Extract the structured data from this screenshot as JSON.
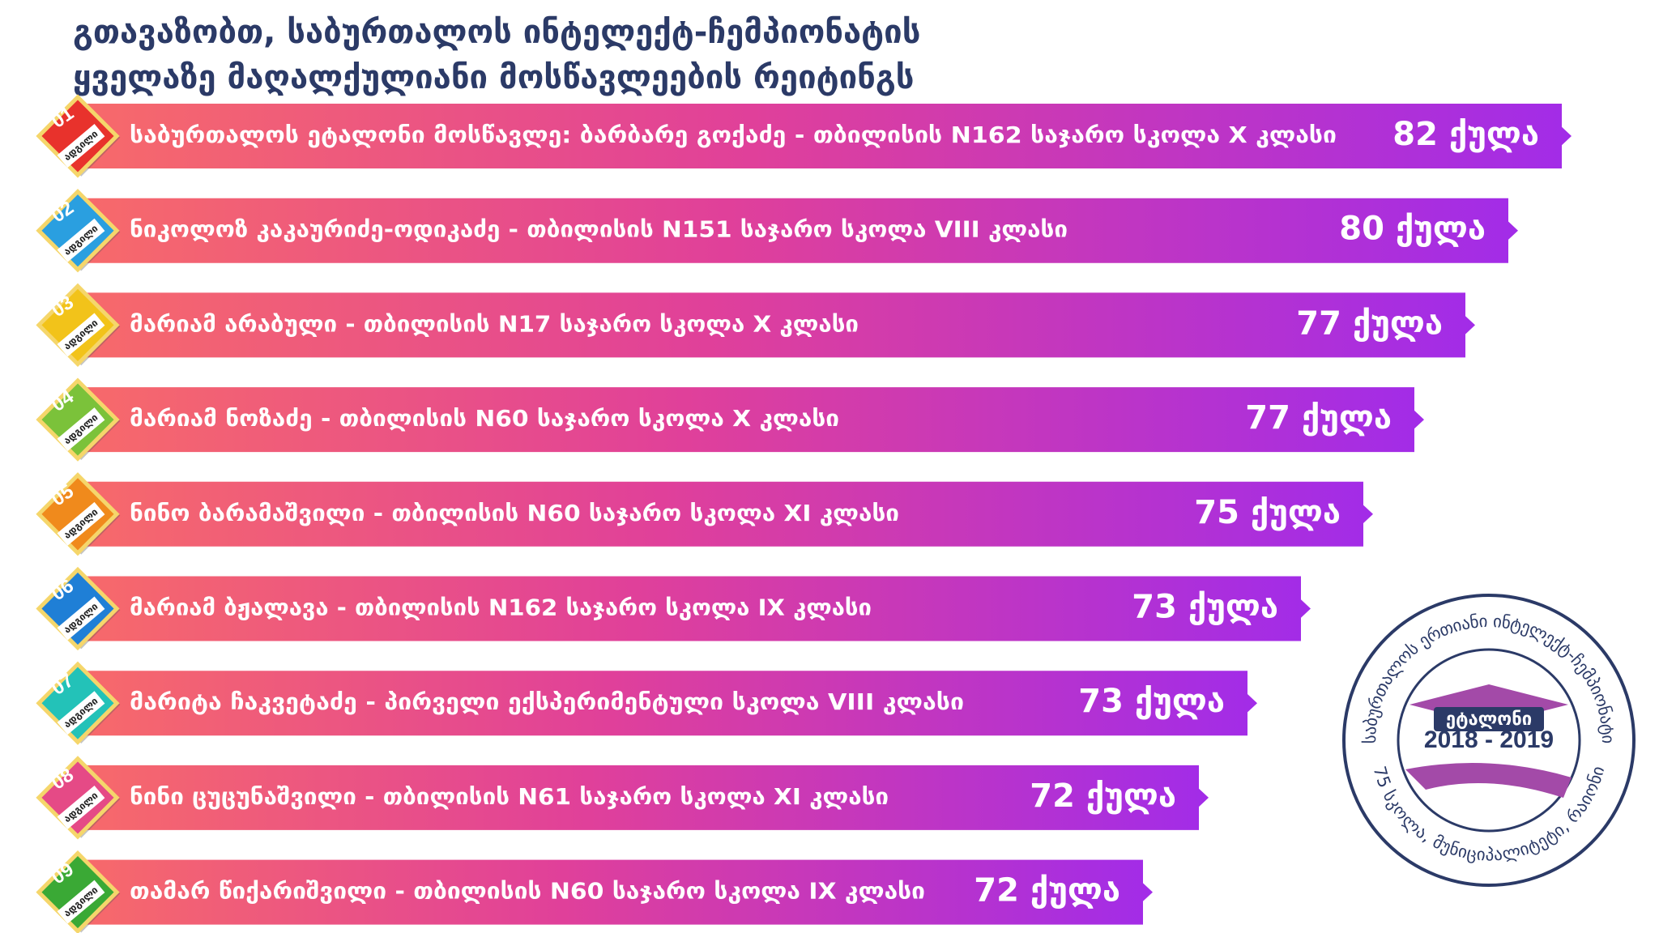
{
  "header": {
    "title_lines": [
      "გთავაზობთ, საბურთალოს ინტელექტ-ჩემპიონატის",
      "ყველაზე მაღალქულიანი მოსწავლეების რეიტინგს"
    ]
  },
  "items": [
    {
      "rank": "01",
      "place": "ადგილი",
      "text": "საბურთალოს ეტალონი მოსწავლე: ბარბარე გოქაძე - თბილისის N162 საჯარო სკოლა  X კლასი",
      "points": "82 ქულა"
    },
    {
      "rank": "02",
      "place": "ადგილი",
      "text": "ნიკოლოზ კაკაურიძე-ოდიკაძე - თბილისის N151 საჯარო სკოლა VIII კლასი",
      "points": "80 ქულა"
    },
    {
      "rank": "03",
      "place": "ადგილი",
      "text": "მარიამ არაბული - თბილისის N17 საჯარო სკოლა X კლასი",
      "points": "77 ქულა"
    },
    {
      "rank": "04",
      "place": "ადგილი",
      "text": "მარიამ ნოზაძე - თბილისის N60 საჯარო სკოლა X კლასი",
      "points": "77 ქულა"
    },
    {
      "rank": "05",
      "place": "ადგილი",
      "text": "ნინო ბარამაშვილი - თბილისის N60 საჯარო სკოლა XI კლასი",
      "points": "75 ქულა"
    },
    {
      "rank": "06",
      "place": "ადგილი",
      "text": "მარიამ ბჟალავა - თბილისის N162 საჯარო სკოლა IX კლასი",
      "points": "73 ქულა"
    },
    {
      "rank": "07",
      "place": "ადგილი",
      "text": "მარიტა ჩაკვეტაძე - პირველი ექსპერიმენტული სკოლა VIII კლასი",
      "points": "73 ქულა"
    },
    {
      "rank": "08",
      "place": "ადგილი",
      "text": "ნინი ცუცუნაშვილი - თბილისის N61 საჯარო სკოლა XI კლასი",
      "points": "72 ქულა"
    },
    {
      "rank": "09",
      "place": "ადგილი",
      "text": "თამარ წიქარიშვილი - თბილისის N60 საჯარო სკოლა IX კლასი",
      "points": "72 ქულა"
    }
  ],
  "logo": {
    "top_text": "საბურთალოს ერთიანი ინტელექტ-ჩემპიონატი",
    "center_title": "ეტალონი",
    "years": "2018 - 2019",
    "bottom_text": "75 სკოლა, მუნიციპალიტეტი, რაიონი"
  }
}
